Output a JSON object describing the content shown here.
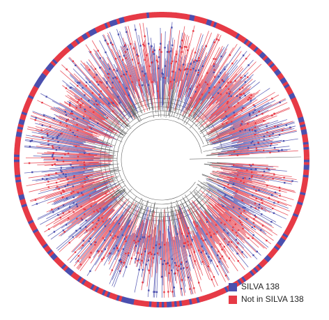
{
  "legend": {
    "items": [
      {
        "label": "SILVA 138",
        "color": "#4b4fae"
      },
      {
        "label": "Not in SILVA 138",
        "color": "#e63a46"
      }
    ]
  }
}
